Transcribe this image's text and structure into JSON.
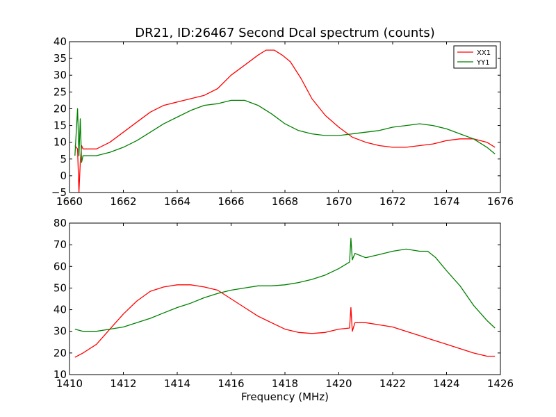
{
  "chart_data": [
    {
      "type": "line",
      "title": "DR21, ID:26467 Second Dcal spectrum (counts)",
      "xlabel": "",
      "ylabel": "",
      "xlim": [
        1660,
        1676
      ],
      "ylim": [
        -5,
        40
      ],
      "xticks": [
        1660,
        1662,
        1664,
        1666,
        1668,
        1670,
        1672,
        1674,
        1676
      ],
      "yticks": [
        -5,
        0,
        5,
        10,
        15,
        20,
        25,
        30,
        35,
        40
      ],
      "legend": {
        "placement": "top-right",
        "entries": [
          "XX1",
          "YY1"
        ]
      },
      "grid": false,
      "series": [
        {
          "name": "XX1",
          "color": "#ff0000",
          "x": [
            1660.2,
            1660.3,
            1660.35,
            1660.4,
            1660.45,
            1660.5,
            1660.6,
            1661,
            1661.5,
            1662,
            1662.5,
            1663,
            1663.5,
            1664,
            1664.5,
            1665,
            1665.5,
            1666,
            1666.5,
            1667,
            1667.3,
            1667.6,
            1667.9,
            1668.2,
            1668.6,
            1669,
            1669.5,
            1670,
            1670.5,
            1671,
            1671.5,
            1672,
            1672.5,
            1673,
            1673.5,
            1674,
            1674.5,
            1675,
            1675.5,
            1675.8
          ],
          "y": [
            9,
            8,
            -5,
            4,
            9,
            8,
            8,
            8,
            10,
            13,
            16,
            19,
            21,
            22,
            23,
            24,
            26,
            30,
            33,
            36,
            37.5,
            37.5,
            36,
            34,
            29,
            23,
            18,
            14.5,
            11.5,
            10,
            9,
            8.5,
            8.5,
            9,
            9.5,
            10.5,
            11,
            11,
            10,
            8.5
          ]
        },
        {
          "name": "YY1",
          "color": "#008000",
          "x": [
            1660.2,
            1660.3,
            1660.35,
            1660.4,
            1660.45,
            1660.5,
            1660.6,
            1661,
            1661.5,
            1662,
            1662.5,
            1663,
            1663.5,
            1664,
            1664.5,
            1665,
            1665.5,
            1666,
            1666.5,
            1667,
            1667.5,
            1668,
            1668.5,
            1669,
            1669.5,
            1670,
            1670.5,
            1671,
            1671.5,
            1672,
            1672.5,
            1673,
            1673.5,
            1674,
            1674.5,
            1675,
            1675.5,
            1675.8
          ],
          "y": [
            6,
            20,
            6,
            17,
            4,
            6,
            6,
            6,
            7,
            8.5,
            10.5,
            13,
            15.5,
            17.5,
            19.5,
            21,
            21.5,
            22.5,
            22.5,
            21,
            18.5,
            15.5,
            13.5,
            12.5,
            12,
            12,
            12.5,
            13,
            13.5,
            14.5,
            15,
            15.5,
            15,
            14,
            12.5,
            11,
            8.5,
            6.5
          ]
        }
      ]
    },
    {
      "type": "line",
      "title": "",
      "xlabel": "Frequency (MHz)",
      "ylabel": "",
      "xlim": [
        1410,
        1426
      ],
      "ylim": [
        10,
        80
      ],
      "xticks": [
        1410,
        1412,
        1414,
        1416,
        1418,
        1420,
        1422,
        1424,
        1426
      ],
      "yticks": [
        10,
        20,
        30,
        40,
        50,
        60,
        70,
        80
      ],
      "grid": false,
      "series": [
        {
          "color": "#ff0000",
          "x": [
            1410.2,
            1410.5,
            1411,
            1411.5,
            1412,
            1412.5,
            1413,
            1413.5,
            1414,
            1414.5,
            1415,
            1415.5,
            1416,
            1416.5,
            1417,
            1417.5,
            1418,
            1418.5,
            1419,
            1419.5,
            1420,
            1420.4,
            1420.45,
            1420.5,
            1420.6,
            1421,
            1421.5,
            1422,
            1422.5,
            1423,
            1423.5,
            1424,
            1424.5,
            1425,
            1425.5,
            1425.8
          ],
          "y": [
            18,
            20,
            24,
            31,
            38,
            44,
            48.5,
            50.5,
            51.5,
            51.5,
            50.5,
            49,
            45,
            41,
            37,
            34,
            31,
            29.5,
            29,
            29.5,
            31,
            31.5,
            41,
            30,
            34,
            34,
            33,
            32,
            30,
            28,
            26,
            24,
            22,
            20,
            18.5,
            18.5
          ]
        },
        {
          "color": "#008000",
          "x": [
            1410.2,
            1410.5,
            1411,
            1411.5,
            1412,
            1412.5,
            1413,
            1413.5,
            1414,
            1414.5,
            1415,
            1415.5,
            1416,
            1416.5,
            1417,
            1417.5,
            1418,
            1418.5,
            1419,
            1419.5,
            1420,
            1420.4,
            1420.45,
            1420.5,
            1420.6,
            1421,
            1421.5,
            1422,
            1422.5,
            1423,
            1423.3,
            1423.6,
            1424,
            1424.5,
            1425,
            1425.5,
            1425.8
          ],
          "y": [
            31,
            30,
            30,
            31,
            32,
            34,
            36,
            38.5,
            41,
            43,
            45.5,
            47.5,
            49,
            50,
            51,
            51,
            51.5,
            52.5,
            54,
            56,
            59,
            62,
            73,
            63,
            66,
            64,
            65.5,
            67,
            68,
            67,
            67,
            64,
            58,
            51,
            42,
            35,
            31.5
          ]
        }
      ]
    }
  ]
}
